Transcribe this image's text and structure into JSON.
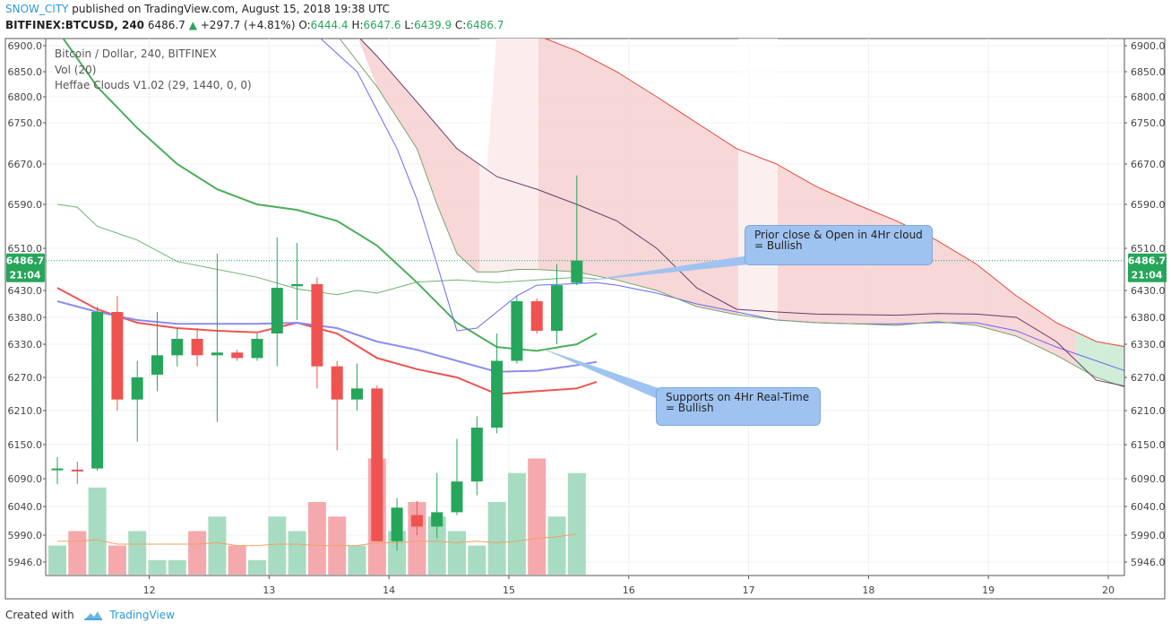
{
  "header": {
    "author": "SNOW_CITY",
    "published": " published on TradingView.com, August 15, 2018 19:38 UTC",
    "symbol": "BITFINEX:BTCUSD, 240",
    "last": "6486.7",
    "change": "+297.7 (+4.81%)",
    "o_label": "O:",
    "o_val": "6444.4",
    "h_label": "H:",
    "h_val": "6647.6",
    "l_label": "L:",
    "l_val": "6439.9",
    "c_label": "C:",
    "c_val": "6486.7"
  },
  "legend": {
    "line1": "Bitcoin / Dollar, 240, BITFINEX",
    "line2": "Vol (20)",
    "line3": "Heffae Clouds V1.02 (29, 1440, 0, 0)"
  },
  "price_badge": {
    "price": "6486.7",
    "countdown": "21:04"
  },
  "callouts": [
    {
      "line1": "Prior close & Open in 4Hr cloud",
      "line2": "= Bullish"
    },
    {
      "line1": "Supports on 4Hr Real-Time",
      "line2": "= Bullish"
    }
  ],
  "footer": {
    "created": "Created with",
    "brand": "TradingView"
  },
  "colors": {
    "up": "#26a65b",
    "down": "#ef5350",
    "up_vol": "#a8dcc2",
    "down_vol": "#f5a9ad",
    "cloud_red": "#f6d0d0",
    "cloud_green": "#d0edd8",
    "accent": "#2a9ad6"
  },
  "chart_data": {
    "type": "candlestick",
    "title": "Bitcoin / Dollar, 240, BITFINEX",
    "ylim": [
      5920,
      6910
    ],
    "y_ticks": [
      6900,
      6850,
      6800,
      6750,
      6670,
      6590,
      6510,
      6430,
      6380,
      6330,
      6270,
      6210,
      6150,
      6090,
      6040,
      5990,
      5946
    ],
    "x_ticks": [
      {
        "label": "12",
        "t": 4.6
      },
      {
        "label": "13",
        "t": 10.6
      },
      {
        "label": "14",
        "t": 16.6
      },
      {
        "label": "15",
        "t": 22.6
      },
      {
        "label": "16",
        "t": 28.6
      },
      {
        "label": "17",
        "t": 34.6
      },
      {
        "label": "18",
        "t": 40.6
      },
      {
        "label": "19",
        "t": 46.6
      },
      {
        "label": "20",
        "t": 52.6
      }
    ],
    "candles": [
      {
        "o": 6108,
        "h": 6128,
        "l": 6080,
        "c": 6108,
        "v": 2,
        "dir": "flat"
      },
      {
        "o": 6106,
        "h": 6120,
        "l": 6080,
        "c": 6104,
        "v": 3,
        "dir": "down"
      },
      {
        "o": 6108,
        "h": 6400,
        "l": 6104,
        "c": 6390,
        "v": 6,
        "dir": "up"
      },
      {
        "o": 6390,
        "h": 6420,
        "l": 6210,
        "c": 6230,
        "v": 2,
        "dir": "down"
      },
      {
        "o": 6230,
        "h": 6300,
        "l": 6155,
        "c": 6270,
        "v": 3,
        "dir": "up"
      },
      {
        "o": 6275,
        "h": 6390,
        "l": 6245,
        "c": 6310,
        "v": 1,
        "dir": "up"
      },
      {
        "o": 6310,
        "h": 6360,
        "l": 6290,
        "c": 6340,
        "v": 1,
        "dir": "up"
      },
      {
        "o": 6340,
        "h": 6360,
        "l": 6290,
        "c": 6310,
        "v": 3,
        "dir": "down"
      },
      {
        "o": 6315,
        "h": 6500,
        "l": 6190,
        "c": 6310,
        "v": 4,
        "dir": "flat"
      },
      {
        "o": 6315,
        "h": 6320,
        "l": 6300,
        "c": 6305,
        "v": 2,
        "dir": "down"
      },
      {
        "o": 6305,
        "h": 6350,
        "l": 6300,
        "c": 6340,
        "v": 1,
        "dir": "up"
      },
      {
        "o": 6350,
        "h": 6530,
        "l": 6290,
        "c": 6435,
        "v": 4,
        "dir": "up"
      },
      {
        "o": 6438,
        "h": 6520,
        "l": 6375,
        "c": 6442,
        "v": 3,
        "dir": "up"
      },
      {
        "o": 6442,
        "h": 6455,
        "l": 6250,
        "c": 6290,
        "v": 5,
        "dir": "down"
      },
      {
        "o": 6290,
        "h": 6300,
        "l": 6140,
        "c": 6230,
        "v": 4,
        "dir": "down"
      },
      {
        "o": 6230,
        "h": 6295,
        "l": 6210,
        "c": 6250,
        "v": 2,
        "dir": "up"
      },
      {
        "o": 6250,
        "h": 6255,
        "l": 5980,
        "c": 5980,
        "v": 8,
        "dir": "down"
      },
      {
        "o": 5980,
        "h": 6055,
        "l": 5965,
        "c": 6038,
        "v": 3,
        "dir": "up"
      },
      {
        "o": 6025,
        "h": 6050,
        "l": 5990,
        "c": 6005,
        "v": 5,
        "dir": "down"
      },
      {
        "o": 6005,
        "h": 6100,
        "l": 5985,
        "c": 6030,
        "v": 4,
        "dir": "up"
      },
      {
        "o": 6030,
        "h": 6160,
        "l": 6025,
        "c": 6085,
        "v": 3,
        "dir": "up"
      },
      {
        "o": 6085,
        "h": 6200,
        "l": 6060,
        "c": 6180,
        "v": 2,
        "dir": "up"
      },
      {
        "o": 6180,
        "h": 6350,
        "l": 6170,
        "c": 6300,
        "v": 5,
        "dir": "up"
      },
      {
        "o": 6300,
        "h": 6420,
        "l": 6295,
        "c": 6410,
        "v": 7,
        "dir": "up"
      },
      {
        "o": 6410,
        "h": 6415,
        "l": 6350,
        "c": 6355,
        "v": 8,
        "dir": "down"
      },
      {
        "o": 6355,
        "h": 6480,
        "l": 6330,
        "c": 6440,
        "v": 4,
        "dir": "up"
      },
      {
        "o": 6444.4,
        "h": 6647.6,
        "l": 6439.9,
        "c": 6486.7,
        "v": 7,
        "dir": "up"
      }
    ],
    "vol_ma": [
      2.3,
      2.3,
      2.4,
      2.1,
      2.1,
      2.1,
      2.1,
      2.1,
      2.2,
      2.0,
      2.0,
      2.1,
      2.1,
      2.0,
      2.0,
      2.0,
      2.2,
      2.2,
      2.3,
      2.3,
      2.2,
      2.3,
      2.2,
      2.3,
      2.5,
      2.6,
      2.8
    ],
    "series": [
      {
        "name": "",
        "color": "#ef5350",
        "width": 2,
        "pts": [
          [
            0,
            6435
          ],
          [
            2,
            6395
          ],
          [
            4,
            6370
          ],
          [
            6,
            6360
          ],
          [
            8,
            6355
          ],
          [
            10,
            6352
          ],
          [
            12,
            6370
          ],
          [
            14,
            6350
          ],
          [
            16,
            6305
          ],
          [
            18,
            6285
          ],
          [
            20,
            6270
          ],
          [
            22,
            6240
          ],
          [
            24,
            6245
          ],
          [
            26,
            6250
          ],
          [
            27,
            6262
          ]
        ]
      },
      {
        "name": "",
        "color": "#8c8cf0",
        "width": 2,
        "pts": [
          [
            0,
            6410
          ],
          [
            2,
            6390
          ],
          [
            4,
            6375
          ],
          [
            6,
            6368
          ],
          [
            8,
            6368
          ],
          [
            10,
            6368
          ],
          [
            12,
            6370
          ],
          [
            14,
            6360
          ],
          [
            16,
            6335
          ],
          [
            18,
            6320
          ],
          [
            20,
            6300
          ],
          [
            22,
            6280
          ],
          [
            24,
            6282
          ],
          [
            26,
            6292
          ],
          [
            27,
            6298
          ]
        ]
      },
      {
        "name": "",
        "color": "#4cae5a",
        "width": 2,
        "pts": [
          [
            0,
            6930
          ],
          [
            2,
            6820
          ],
          [
            4,
            6740
          ],
          [
            6,
            6670
          ],
          [
            8,
            6620
          ],
          [
            10,
            6590
          ],
          [
            12,
            6580
          ],
          [
            14,
            6560
          ],
          [
            16,
            6515
          ],
          [
            18,
            6445
          ],
          [
            20,
            6370
          ],
          [
            22,
            6325
          ],
          [
            24,
            6318
          ],
          [
            26,
            6330
          ],
          [
            27,
            6350
          ]
        ]
      },
      {
        "name": "",
        "color": "#6db56d",
        "width": 1,
        "pts": [
          [
            0,
            6590
          ],
          [
            1,
            6585
          ],
          [
            2,
            6550
          ],
          [
            4,
            6525
          ],
          [
            6,
            6485
          ],
          [
            8,
            6470
          ],
          [
            10,
            6455
          ],
          [
            12,
            6433
          ],
          [
            14,
            6422
          ],
          [
            15,
            6430
          ],
          [
            16,
            6425
          ],
          [
            18,
            6446
          ],
          [
            20,
            6450
          ],
          [
            22,
            6445
          ],
          [
            24,
            6450
          ],
          [
            26,
            6455
          ],
          [
            27,
            6452
          ]
        ]
      },
      {
        "name": "",
        "color": "#6a6af0",
        "width": 1,
        "pts": [
          [
            13,
            6920
          ],
          [
            15,
            6850
          ],
          [
            17,
            6700
          ],
          [
            18,
            6600
          ],
          [
            19,
            6480
          ],
          [
            20,
            6355
          ],
          [
            21,
            6360
          ],
          [
            22,
            6390
          ],
          [
            23,
            6420
          ],
          [
            24,
            6440
          ],
          [
            26,
            6443
          ],
          [
            27,
            6445
          ],
          [
            28,
            6440
          ],
          [
            30,
            6425
          ],
          [
            32,
            6405
          ],
          [
            34,
            6390
          ],
          [
            36,
            6375
          ],
          [
            38,
            6370
          ],
          [
            40,
            6368
          ],
          [
            42,
            6368
          ],
          [
            44,
            6370
          ],
          [
            46,
            6370
          ],
          [
            48,
            6355
          ],
          [
            50,
            6325
          ],
          [
            52,
            6300
          ],
          [
            54,
            6275
          ]
        ]
      },
      {
        "name": "",
        "color": "#7aa56c",
        "width": 1,
        "pts": [
          [
            14,
            6920
          ],
          [
            16,
            6820
          ],
          [
            18,
            6700
          ],
          [
            19,
            6590
          ],
          [
            20,
            6500
          ],
          [
            21,
            6465
          ],
          [
            22,
            6465
          ],
          [
            23,
            6470
          ],
          [
            24,
            6470
          ],
          [
            26,
            6465
          ],
          [
            28,
            6450
          ],
          [
            30,
            6430
          ],
          [
            32,
            6400
          ],
          [
            34,
            6385
          ],
          [
            36,
            6375
          ],
          [
            38,
            6370
          ],
          [
            40,
            6368
          ],
          [
            42,
            6365
          ],
          [
            44,
            6372
          ],
          [
            46,
            6365
          ],
          [
            48,
            6345
          ],
          [
            50,
            6310
          ],
          [
            52,
            6270
          ],
          [
            54,
            6245
          ]
        ]
      },
      {
        "name": "",
        "color": "#6b3a6b",
        "width": 1,
        "pts": [
          [
            15,
            6920
          ],
          [
            16,
            6880
          ],
          [
            18,
            6790
          ],
          [
            20,
            6700
          ],
          [
            22,
            6645
          ],
          [
            24,
            6620
          ],
          [
            26,
            6590
          ],
          [
            28,
            6560
          ],
          [
            30,
            6510
          ],
          [
            32,
            6435
          ],
          [
            34,
            6395
          ],
          [
            36,
            6390
          ],
          [
            38,
            6386
          ],
          [
            40,
            6385
          ],
          [
            42,
            6384
          ],
          [
            44,
            6387
          ],
          [
            46,
            6386
          ],
          [
            48,
            6380
          ],
          [
            50,
            6335
          ],
          [
            52,
            6265
          ],
          [
            54,
            6250
          ]
        ]
      },
      {
        "name": "",
        "color": "#e8463b",
        "width": 1,
        "pts": [
          [
            22,
            6930
          ],
          [
            24,
            6920
          ],
          [
            26,
            6890
          ],
          [
            28,
            6850
          ],
          [
            30,
            6800
          ],
          [
            32,
            6750
          ],
          [
            34,
            6700
          ],
          [
            36,
            6670
          ],
          [
            38,
            6625
          ],
          [
            40,
            6590
          ],
          [
            42,
            6560
          ],
          [
            44,
            6525
          ],
          [
            46,
            6480
          ],
          [
            48,
            6420
          ],
          [
            50,
            6370
          ],
          [
            52,
            6335
          ],
          [
            54,
            6322
          ]
        ]
      }
    ],
    "cloud_red": {
      "top": [
        [
          15,
          6920
        ],
        [
          16,
          6880
        ],
        [
          18,
          6790
        ],
        [
          20,
          6700
        ],
        [
          22,
          6645
        ],
        [
          24,
          6620
        ],
        [
          26,
          6590
        ],
        [
          28,
          6560
        ],
        [
          30,
          6510
        ],
        [
          32,
          6435
        ],
        [
          34,
          6395
        ],
        [
          36,
          6390
        ],
        [
          38,
          6386
        ],
        [
          40,
          6385
        ],
        [
          42,
          6384
        ],
        [
          44,
          6387
        ],
        [
          46,
          6386
        ],
        [
          48,
          6380
        ],
        [
          50,
          6335
        ]
      ],
      "top2": [
        [
          22,
          6930
        ],
        [
          24,
          6920
        ],
        [
          26,
          6890
        ],
        [
          28,
          6850
        ],
        [
          30,
          6800
        ],
        [
          32,
          6750
        ],
        [
          34,
          6700
        ],
        [
          36,
          6670
        ],
        [
          38,
          6625
        ],
        [
          40,
          6590
        ],
        [
          42,
          6560
        ],
        [
          44,
          6525
        ],
        [
          46,
          6480
        ],
        [
          48,
          6420
        ],
        [
          50,
          6370
        ],
        [
          51,
          6352
        ]
      ],
      "bottom": [
        [
          15,
          6920
        ],
        [
          16,
          6820
        ],
        [
          18,
          6700
        ],
        [
          19,
          6590
        ],
        [
          20,
          6500
        ],
        [
          21,
          6465
        ],
        [
          22,
          6465
        ],
        [
          24,
          6470
        ],
        [
          26,
          6465
        ],
        [
          28,
          6450
        ],
        [
          30,
          6430
        ],
        [
          32,
          6400
        ],
        [
          34,
          6385
        ],
        [
          36,
          6375
        ],
        [
          38,
          6370
        ],
        [
          40,
          6368
        ],
        [
          42,
          6365
        ],
        [
          44,
          6372
        ],
        [
          46,
          6365
        ],
        [
          48,
          6345
        ],
        [
          50,
          6310
        ],
        [
          51,
          6290
        ]
      ]
    },
    "cloud_green": [
      [
        51,
        6352
      ],
      [
        52,
        6335
      ],
      [
        54,
        6322
      ],
      [
        54,
        6245
      ],
      [
        52,
        6270
      ],
      [
        51,
        6290
      ]
    ]
  }
}
